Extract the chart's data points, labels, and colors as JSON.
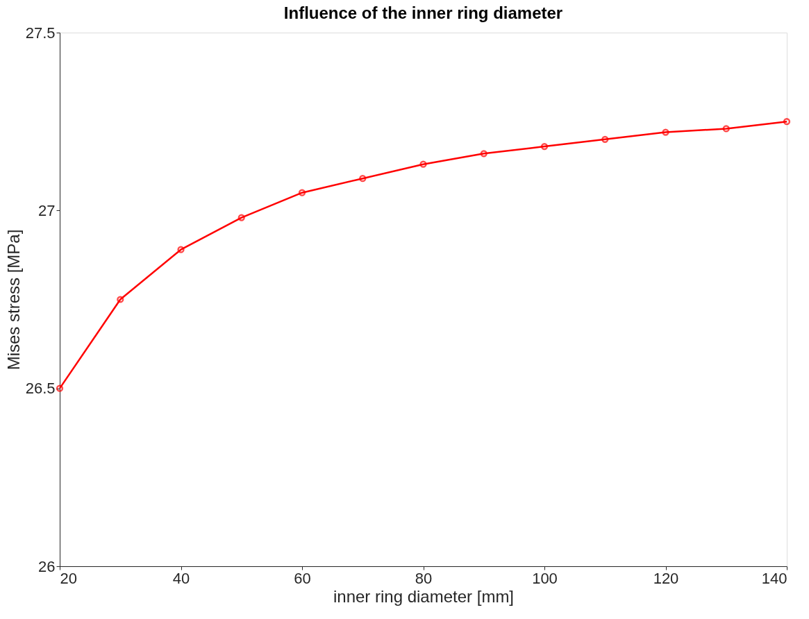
{
  "chart_data": {
    "type": "line",
    "title": "Influence of the inner ring diameter",
    "xlabel": "inner ring diameter [mm]",
    "ylabel": "Mises stress [MPa]",
    "x": [
      20,
      30,
      40,
      50,
      60,
      70,
      80,
      90,
      100,
      110,
      120,
      130,
      140
    ],
    "series": [
      {
        "color": "#ff0000",
        "values": [
          26.5,
          26.75,
          26.89,
          26.98,
          27.05,
          27.09,
          27.13,
          27.16,
          27.18,
          27.2,
          27.22,
          27.23,
          27.25
        ]
      }
    ],
    "xlim": [
      20,
      140
    ],
    "xticks": [
      20,
      40,
      60,
      80,
      100,
      120,
      140
    ],
    "ylim": [
      26,
      27.5
    ],
    "yticks": [
      26,
      26.5,
      27,
      27.5
    ],
    "grid": false,
    "legend": false,
    "marker": "circle",
    "line_style": "solid"
  }
}
